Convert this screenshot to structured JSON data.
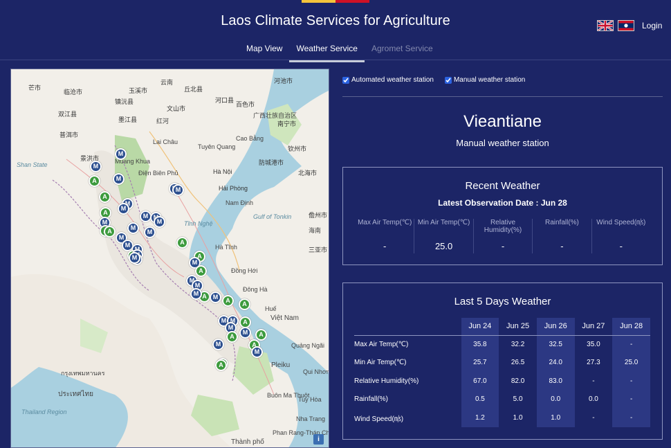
{
  "colors": {
    "background": "#1c2566",
    "flag_red": "#ce1126",
    "flag_yellow": "#f4c43b",
    "tab_underline": "#c7ccda",
    "marker_manual": "#2c4f8f",
    "marker_auto": "#3d9b3e"
  },
  "header": {
    "title": "Laos Climate Services for Agriculture",
    "languages": [
      {
        "name": "english-flag-icon"
      },
      {
        "name": "lao-flag-icon"
      }
    ],
    "login": "Login"
  },
  "tabs": [
    {
      "label": "Map View",
      "state": "normal"
    },
    {
      "label": "Weather Service",
      "state": "active"
    },
    {
      "label": "Agromet Service",
      "state": "disabled"
    }
  ],
  "filters": {
    "automated": {
      "label": "Automated weather station",
      "checked": true
    },
    "manual": {
      "label": "Manual weather station",
      "checked": true
    }
  },
  "station": {
    "name": "Vieantiane",
    "type": "Manual weather station"
  },
  "recent": {
    "title": "Recent Weather",
    "date_label": "Latest Observation Date : Jun 28",
    "columns": [
      {
        "label": "Max Air Temp(℃)",
        "value": "-"
      },
      {
        "label": "Min Air Temp(℃)",
        "value": "25.0"
      },
      {
        "label": "Relative Humidity(%)",
        "value": "-"
      },
      {
        "label": "Rainfall(%)",
        "value": "-"
      },
      {
        "label": "Wind Speed(㎧)",
        "value": "-"
      }
    ]
  },
  "last5": {
    "title": "Last 5 Days Weather",
    "days": [
      "Jun 24",
      "Jun 25",
      "Jun 26",
      "Jun 27",
      "Jun 28"
    ],
    "rows": [
      {
        "label": "Max Air Temp(℃)",
        "values": [
          "35.8",
          "32.2",
          "32.5",
          "35.0",
          "-"
        ]
      },
      {
        "label": "Min Air Temp(℃)",
        "values": [
          "25.7",
          "26.5",
          "24.0",
          "27.3",
          "25.0"
        ]
      },
      {
        "label": "Relative Humidity(%)",
        "values": [
          "67.0",
          "82.0",
          "83.0",
          "-",
          "-"
        ]
      },
      {
        "label": "Rainfall(%)",
        "values": [
          "0.5",
          "5.0",
          "0.0",
          "0.0",
          "-"
        ]
      },
      {
        "label": "Wind Speed(㎧)",
        "values": [
          "1.2",
          "1.0",
          "1.0",
          "-",
          "-"
        ]
      }
    ]
  },
  "map": {
    "info_button": "i",
    "labels": [
      "芒市",
      "临沧市",
      "镇沅县",
      "玉溪市",
      "云南",
      "丘北县",
      "河口县",
      "河池市",
      "双江县",
      "墨江县",
      "红河",
      "百色市",
      "普洱市",
      "文山市",
      "广西壮族自治区",
      "南宁市",
      "景洪市",
      "Muang Khua",
      "Lai Châu",
      "Cao Bằng",
      "钦州市",
      "北海市",
      "Điện Biên Phủ",
      "Tuyên Quang",
      "Hà Nội",
      "Hải Phòng",
      "防城港市",
      "Nam Định",
      "Gulf of Tonkin",
      "儋州市",
      "Tĩnh Nghệ",
      "Hà Tĩnh",
      "海南",
      "三亚市",
      "Đồng Hới",
      "Đông Hà",
      "Huế",
      "Việt Nam",
      "Quảng Ngãi",
      "Pleiku",
      "Qui Nhơn",
      "Tuy Hòa",
      "Nha Trang",
      "Buôn Ma Thuột",
      "Phan Rang-Tháp Chàm",
      "Thành phố",
      "ประเทศไทย",
      "กรุงเทพมหานคร",
      "Shan State",
      "Thailand Region"
    ],
    "markers": [
      {
        "t": "M"
      },
      {
        "t": "M"
      },
      {
        "t": "A"
      },
      {
        "t": "M"
      },
      {
        "t": "M"
      },
      {
        "t": "M"
      },
      {
        "t": "A"
      },
      {
        "t": "M"
      },
      {
        "t": "M"
      },
      {
        "t": "A"
      },
      {
        "t": "M"
      },
      {
        "t": "M"
      },
      {
        "t": "A"
      },
      {
        "t": "M"
      },
      {
        "t": "M"
      },
      {
        "t": "M"
      },
      {
        "t": "A"
      },
      {
        "t": "M"
      },
      {
        "t": "M"
      },
      {
        "t": "A"
      },
      {
        "t": "M"
      },
      {
        "t": "M"
      },
      {
        "t": "A"
      },
      {
        "t": "M"
      },
      {
        "t": "A"
      },
      {
        "t": "M"
      },
      {
        "t": "M"
      },
      {
        "t": "M"
      },
      {
        "t": "A"
      },
      {
        "t": "M"
      },
      {
        "t": "A"
      },
      {
        "t": "M"
      },
      {
        "t": "M"
      },
      {
        "t": "M"
      },
      {
        "t": "A"
      },
      {
        "t": "A"
      },
      {
        "t": "M"
      },
      {
        "t": "M"
      },
      {
        "t": "M"
      },
      {
        "t": "A"
      },
      {
        "t": "A"
      },
      {
        "t": "M"
      },
      {
        "t": "A"
      },
      {
        "t": "A"
      },
      {
        "t": "M"
      },
      {
        "t": "A"
      },
      {
        "t": "M"
      },
      {
        "t": "A"
      }
    ]
  }
}
